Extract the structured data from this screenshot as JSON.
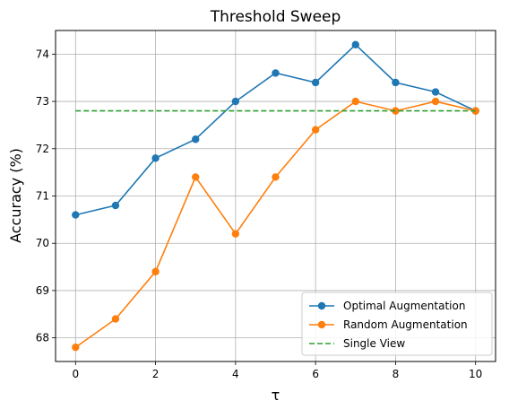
{
  "chart_data": {
    "type": "line",
    "title": "Threshold Sweep",
    "xlabel": "τ",
    "ylabel": "Accuracy (%)",
    "xlim": [
      -0.5,
      10.5
    ],
    "ylim": [
      67.5,
      74.5
    ],
    "xticks": [
      0,
      2,
      4,
      6,
      8,
      10
    ],
    "yticks": [
      68,
      69,
      70,
      71,
      72,
      73,
      74
    ],
    "grid": true,
    "legend_position": "lower-right",
    "x": [
      0,
      1,
      2,
      3,
      4,
      5,
      6,
      7,
      8,
      9,
      10
    ],
    "series": [
      {
        "name": "Optimal Augmentation",
        "color": "#1f77b4",
        "style": "line-markers",
        "values": [
          70.6,
          70.8,
          71.8,
          72.2,
          73.0,
          73.6,
          73.4,
          74.2,
          73.4,
          73.2,
          72.8
        ]
      },
      {
        "name": "Random Augmentation",
        "color": "#ff7f0e",
        "style": "line-markers",
        "values": [
          67.8,
          68.4,
          69.4,
          71.4,
          70.2,
          71.4,
          72.4,
          73.0,
          72.8,
          73.0,
          72.8
        ]
      },
      {
        "name": "Single View",
        "color": "#2ca02c",
        "style": "dashed",
        "values": [
          72.8,
          72.8,
          72.8,
          72.8,
          72.8,
          72.8,
          72.8,
          72.8,
          72.8,
          72.8,
          72.8
        ]
      }
    ]
  }
}
